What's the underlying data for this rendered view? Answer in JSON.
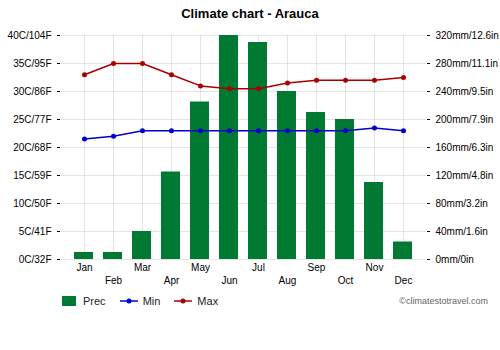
{
  "chart_data": {
    "type": "combo",
    "title": "Climate chart - Arauca",
    "categories": [
      "Jan",
      "Feb",
      "Mar",
      "Apr",
      "May",
      "Jun",
      "Jul",
      "Aug",
      "Sep",
      "Oct",
      "Nov",
      "Dec"
    ],
    "series": [
      {
        "name": "Prec",
        "type": "bar",
        "axis": "y2",
        "color": "#007A33",
        "values": [
          10,
          10,
          40,
          125,
          225,
          320,
          310,
          240,
          210,
          200,
          110,
          25
        ]
      },
      {
        "name": "Min",
        "type": "line",
        "marker": "circle",
        "color": "#0000CC",
        "values": [
          21.5,
          22.0,
          23.0,
          23.0,
          23.0,
          23.0,
          23.0,
          23.0,
          23.0,
          23.0,
          23.5,
          23.0
        ]
      },
      {
        "name": "Max",
        "type": "line",
        "marker": "circle",
        "color": "#AA0000",
        "values": [
          33.0,
          35.0,
          35.0,
          33.0,
          31.0,
          30.5,
          30.5,
          31.5,
          32.0,
          32.0,
          32.0,
          32.5
        ]
      }
    ],
    "ylim": [
      0,
      40
    ],
    "yticks": [
      {
        "value": 0,
        "label": "0C/32F"
      },
      {
        "value": 5,
        "label": "5C/41F"
      },
      {
        "value": 10,
        "label": "10C/50F"
      },
      {
        "value": 15,
        "label": "15C/59F"
      },
      {
        "value": 20,
        "label": "20C/68F"
      },
      {
        "value": 25,
        "label": "25C/77F"
      },
      {
        "value": 30,
        "label": "30C/86F"
      },
      {
        "value": 35,
        "label": "35C/95F"
      },
      {
        "value": 40,
        "label": "40C/104F"
      }
    ],
    "y2lim": [
      0,
      320
    ],
    "y2ticks": [
      {
        "value": 0,
        "label": "0mm/0in"
      },
      {
        "value": 40,
        "label": "40mm/1.6in"
      },
      {
        "value": 80,
        "label": "80mm/3.2in"
      },
      {
        "value": 120,
        "label": "120mm/4.8in"
      },
      {
        "value": 160,
        "label": "160mm/6.3in"
      },
      {
        "value": 200,
        "label": "200mm/7.9in"
      },
      {
        "value": 240,
        "label": "240mm/9.5in"
      },
      {
        "value": 280,
        "label": "280mm/11.1in"
      },
      {
        "value": 320,
        "label": "320mm/12.6in"
      }
    ],
    "grid": true,
    "legend": "bottom",
    "annotations": [
      "©climatestotravel.com"
    ]
  }
}
